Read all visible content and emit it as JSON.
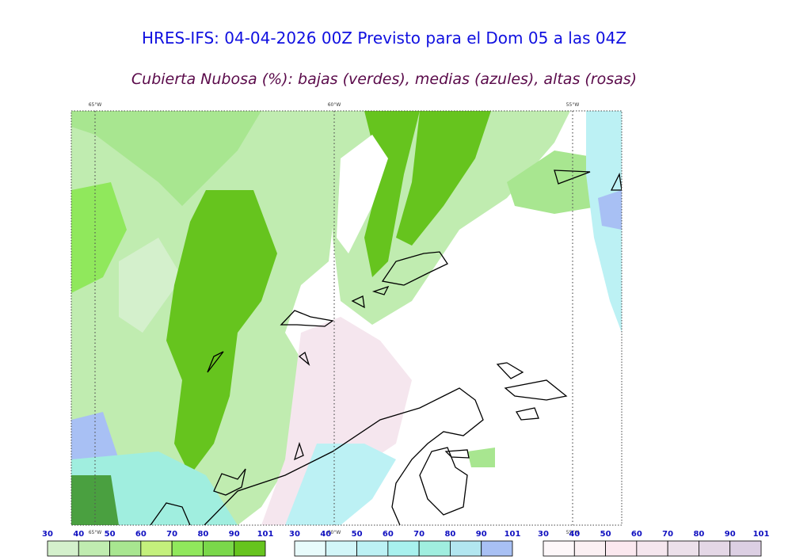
{
  "title": "HRES-IFS: 04-04-2026 00Z Previsto para el Dom 05 a las 04Z",
  "subtitle": "Cubierta Nubosa (%): bajas (verdes), medias (azules), altas (rosas)",
  "meridians": [
    "65°W",
    "60°W",
    "55°W"
  ],
  "colorbars": [
    {
      "ticks": [
        30,
        40,
        50,
        60,
        70,
        80,
        90,
        101
      ],
      "colors": [
        "#d4f0cc",
        "#c0ecb0",
        "#a8e690",
        "#c4f07c",
        "#90e85c",
        "#7ad84a",
        "#66c41e"
      ]
    },
    {
      "ticks": [
        30,
        40,
        50,
        60,
        70,
        80,
        90,
        101
      ],
      "colors": [
        "#e8fbfb",
        "#d2f6f8",
        "#bcf1f4",
        "#a8f1ee",
        "#a0eedf",
        "#b2e6f0",
        "#a8c0f4"
      ]
    },
    {
      "ticks": [
        30,
        40,
        50,
        60,
        70,
        80,
        90,
        101
      ],
      "colors": [
        "#fdf7f9",
        "#fbf0f3",
        "#fbe8ef",
        "#f5e6ee",
        "#ece0ea",
        "#e4d7e6",
        "#dccfe3"
      ]
    }
  ]
}
